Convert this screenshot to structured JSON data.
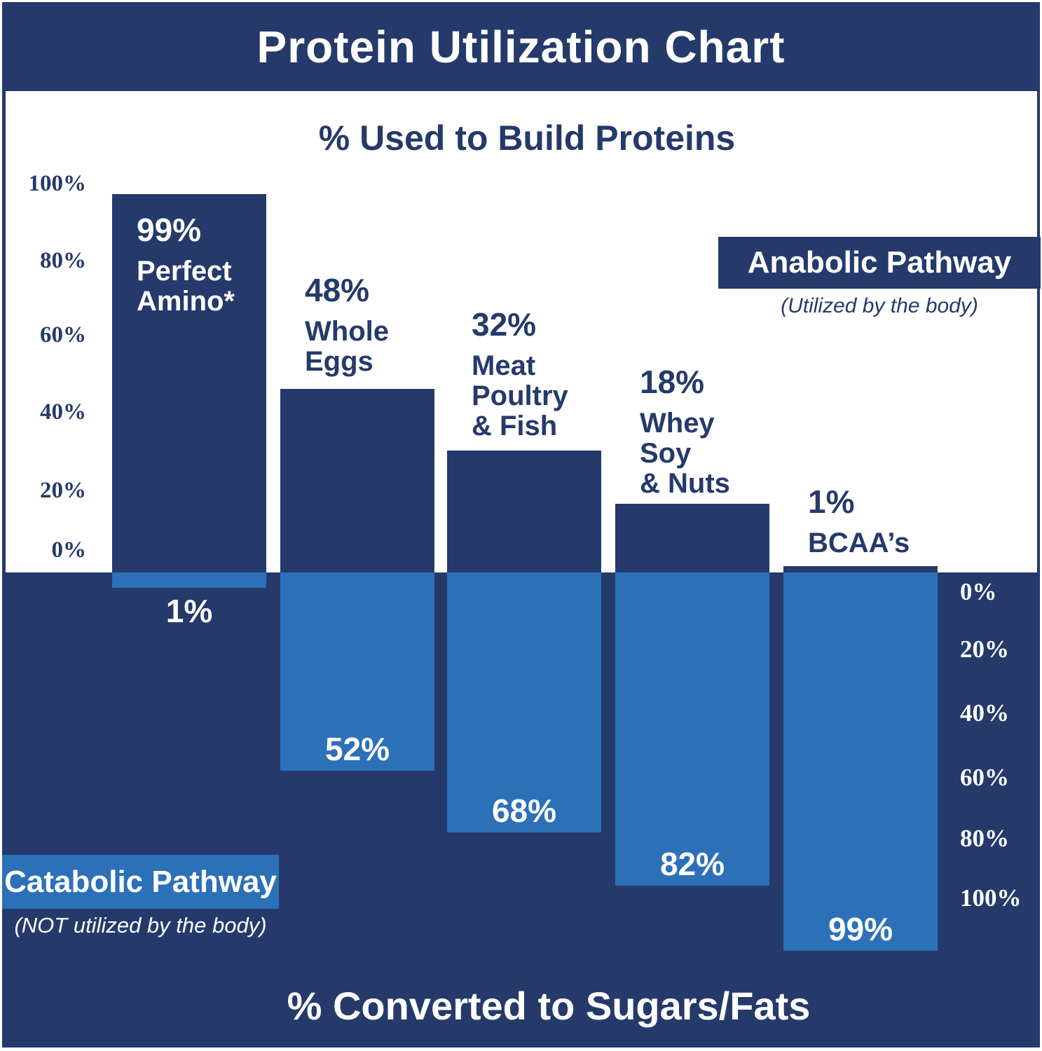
{
  "title": "Protein Utilization Chart",
  "colors": {
    "navy": "#253A6B",
    "light_blue": "#2C70B8",
    "background": "#FFFFFF"
  },
  "top_section": {
    "heading": "% Used to Build Proteins",
    "axis_ticks": [
      "100%",
      "80%",
      "60%",
      "40%",
      "20%",
      "0%"
    ]
  },
  "bottom_section": {
    "heading": "% Converted to Sugars/Fats",
    "axis_ticks": [
      "0%",
      "20%",
      "40%",
      "60%",
      "80%",
      "100%"
    ]
  },
  "legend": {
    "anabolic": {
      "label": "Anabolic Pathway",
      "note": "(Utilized by the body)"
    },
    "catabolic": {
      "label": "Catabolic Pathway",
      "note": "(NOT utilized by the body)"
    }
  },
  "chart_data": {
    "type": "bar",
    "title": "Protein Utilization Chart",
    "top_axis_label": "% Used to Build Proteins",
    "bottom_axis_label": "% Converted to Sugars/Fats",
    "top_axis_range": [
      0,
      100
    ],
    "bottom_axis_range": [
      0,
      100
    ],
    "grid": false,
    "categories": [
      "Perfect Amino*",
      "Whole Eggs",
      "Meat Poultry & Fish",
      "Whey Soy & Nuts",
      "BCAA’s"
    ],
    "category_slugs": [
      "perfect-amino",
      "whole-eggs",
      "meat-poultry-fish",
      "whey-soy-nuts",
      "bcaas"
    ],
    "category_name_lines": [
      [
        "Perfect",
        "Amino*"
      ],
      [
        "Whole",
        "Eggs"
      ],
      [
        "Meat",
        "Poultry",
        "& Fish"
      ],
      [
        "Whey",
        "Soy",
        "& Nuts"
      ],
      [
        "BCAA’s"
      ]
    ],
    "series": [
      {
        "name": "Anabolic Pathway",
        "note": "(Utilized by the body)",
        "direction": "up",
        "color": "#253A6B",
        "values": [
          99,
          48,
          32,
          18,
          1
        ],
        "value_labels": [
          "99%",
          "48%",
          "32%",
          "18%",
          "1%"
        ]
      },
      {
        "name": "Catabolic Pathway",
        "note": "(NOT utilized by the body)",
        "direction": "down",
        "color": "#2C70B8",
        "values": [
          1,
          52,
          68,
          82,
          99
        ],
        "value_labels": [
          "1%",
          "52%",
          "68%",
          "82%",
          "99%"
        ]
      }
    ]
  }
}
